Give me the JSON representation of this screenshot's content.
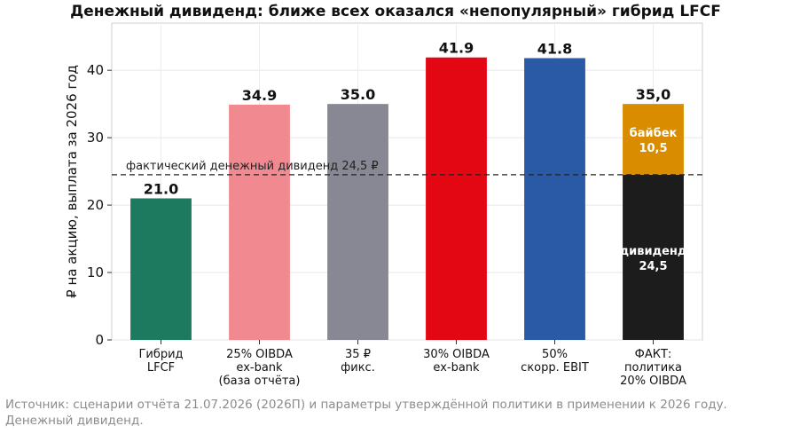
{
  "chart_data": {
    "type": "bar",
    "title": "Денежный дивиденд: ближе всех оказался «непопулярный» гибрид LFCF",
    "xlabel": "",
    "ylabel": "₽ на акцию, выплата за 2026 год",
    "ylim": [
      0,
      47
    ],
    "yticks": [
      0,
      10,
      20,
      30,
      40
    ],
    "grid": true,
    "categories": [
      [
        "Гибрид",
        "LFCF"
      ],
      [
        "25% OIBDA",
        "ex-bank",
        "(база отчёта)"
      ],
      [
        "35 ₽",
        "фикс."
      ],
      [
        "30% OIBDA",
        "ex-bank"
      ],
      [
        "50%",
        "скорр. EBIT"
      ],
      [
        "ФАКТ:",
        "политика",
        "20% OIBDA"
      ]
    ],
    "values": [
      21.0,
      34.9,
      35.0,
      41.9,
      41.8,
      35.0
    ],
    "value_labels": [
      "21.0",
      "34.9",
      "35.0",
      "41.9",
      "41.8",
      "35,0"
    ],
    "colors": [
      "#1e7a5f",
      "#f08a90",
      "#888894",
      "#e30613",
      "#2a5aa6",
      "#1c1c1c"
    ],
    "stacked_last": {
      "segments": [
        {
          "label": [
            "дивиденд",
            "24,5"
          ],
          "value": 24.5,
          "color": "#1c1c1c"
        },
        {
          "label": [
            "байбек",
            "10,5"
          ],
          "value": 10.5,
          "color": "#d98c00"
        }
      ]
    },
    "reference_line": {
      "value": 24.5,
      "label": "фактический денежный дивиденд 24,5 ₽",
      "style": "dashed"
    }
  },
  "footer": {
    "source_line1": "Источник: сценарии отчёта 21.07.2026 (2026П) и параметры утверждённой политики в применении к 2026 году.",
    "source_line2": "Денежный дивиденд."
  }
}
